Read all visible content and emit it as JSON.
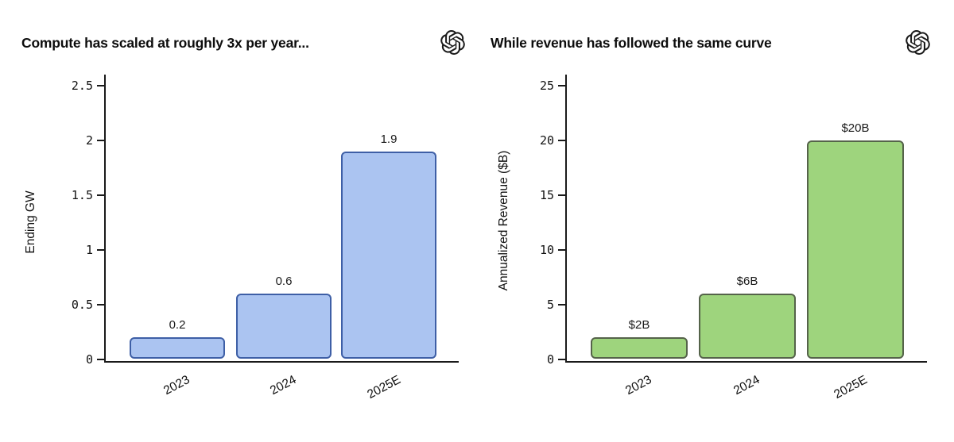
{
  "page": {
    "background": "#ffffff",
    "logo_icon": "openai-logo"
  },
  "chart_data": [
    {
      "type": "bar",
      "title": "Compute has scaled at roughly 3x per year...",
      "categories": [
        "2023",
        "2024",
        "2025E"
      ],
      "values": [
        0.2,
        0.6,
        1.9
      ],
      "bar_labels": [
        "0.2",
        "0.6",
        "1.9"
      ],
      "xlabel": "",
      "ylabel": "Ending GW",
      "ylim": [
        0,
        2.5
      ],
      "yticks": [
        0,
        0.5,
        1,
        1.5,
        2,
        2.5
      ],
      "ytick_labels": [
        "0",
        "0.5",
        "1",
        "1.5",
        "2",
        "2.5"
      ],
      "grid": false,
      "legend": null,
      "bar_fill": "#abc4f1",
      "bar_border": "#3e5fa6",
      "axis_color": "#1a1a1a",
      "xtick_rotation_deg": 28
    },
    {
      "type": "bar",
      "title": "While revenue has followed the same curve",
      "categories": [
        "2023",
        "2024",
        "2025E"
      ],
      "values": [
        2,
        6,
        20
      ],
      "bar_labels": [
        "$2B",
        "$6B",
        "$20B"
      ],
      "xlabel": "",
      "ylabel": "Annualized Revenue ($B)",
      "ylim": [
        0,
        25
      ],
      "yticks": [
        0,
        5,
        10,
        15,
        20,
        25
      ],
      "ytick_labels": [
        "0",
        "5",
        "10",
        "15",
        "20",
        "25"
      ],
      "grid": false,
      "legend": null,
      "bar_fill": "#9ed47d",
      "bar_border": "#55634a",
      "axis_color": "#1a1a1a",
      "xtick_rotation_deg": 28
    }
  ]
}
